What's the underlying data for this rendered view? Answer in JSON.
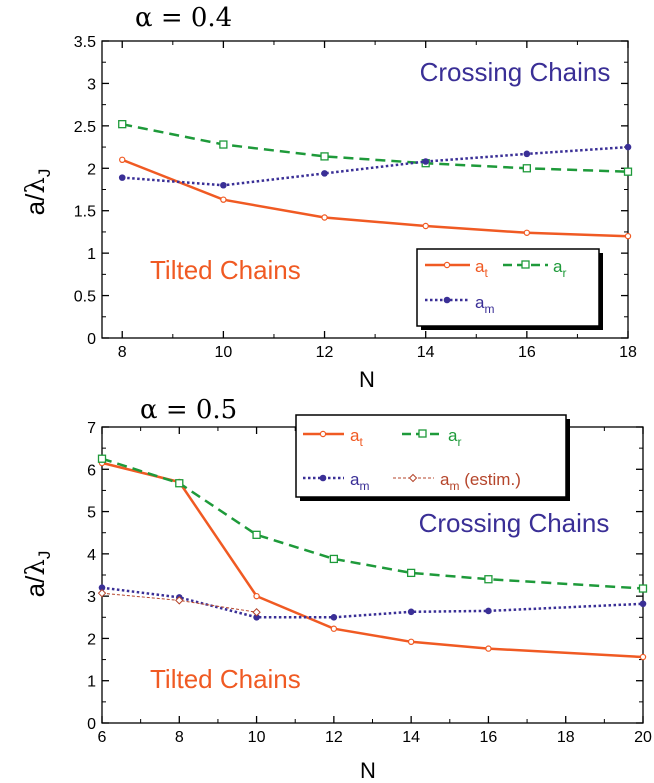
{
  "chart_data": [
    {
      "type": "line",
      "title": "α = 0.4",
      "xlabel": "N",
      "ylabel_parts": [
        "a/",
        "λ",
        "J"
      ],
      "xlim": [
        7.6,
        18.0
      ],
      "ylim": [
        0,
        3.5
      ],
      "xticks": [
        8,
        10,
        12,
        14,
        16,
        18
      ],
      "yticks": [
        0,
        0.5,
        1,
        1.5,
        2,
        2.5,
        3,
        3.5
      ],
      "ytick_labels": [
        "0",
        "0.5",
        "1",
        "1.5",
        "2",
        "2.5",
        "3",
        "3.5"
      ],
      "grid": false,
      "legend_placement": "bottom-right",
      "annotations": [
        {
          "text": "Crossing Chains",
          "color": "#3a2f96"
        },
        {
          "text": "Tilted Chains",
          "color": "#f05a23"
        }
      ],
      "series": [
        {
          "name": "a_t",
          "label_main": "a",
          "label_sub": "t",
          "style": "solid",
          "marker": "open-circle",
          "color": "#f05a23",
          "x": [
            8,
            10,
            12,
            14,
            16,
            18
          ],
          "y": [
            2.1,
            1.63,
            1.42,
            1.32,
            1.24,
            1.2
          ]
        },
        {
          "name": "a_r",
          "label_main": "a",
          "label_sub": "r",
          "style": "dashed",
          "marker": "open-square",
          "color": "#1e9a3a",
          "x": [
            8,
            10,
            12,
            14,
            16,
            18
          ],
          "y": [
            2.52,
            2.28,
            2.14,
            2.06,
            2.0,
            1.96
          ]
        },
        {
          "name": "a_m",
          "label_main": "a",
          "label_sub": "m",
          "style": "dotted",
          "marker": "filled-circle",
          "color": "#3a2f96",
          "x": [
            8,
            10,
            12,
            14,
            16,
            18
          ],
          "y": [
            1.89,
            1.8,
            1.94,
            2.08,
            2.17,
            2.25
          ]
        }
      ]
    },
    {
      "type": "line",
      "title": "α = 0.5",
      "xlabel": "N",
      "ylabel_parts": [
        "a/",
        "λ",
        "J"
      ],
      "xlim": [
        6,
        20
      ],
      "ylim": [
        0,
        7
      ],
      "xticks": [
        6,
        8,
        10,
        12,
        14,
        16,
        18,
        20
      ],
      "yticks": [
        0,
        1,
        2,
        3,
        4,
        5,
        6,
        7
      ],
      "ytick_labels": [
        "0",
        "1",
        "2",
        "3",
        "4",
        "5",
        "6",
        "7"
      ],
      "grid": false,
      "legend_placement": "top-center",
      "annotations": [
        {
          "text": "Crossing Chains",
          "color": "#3a2f96"
        },
        {
          "text": "Tilted Chains",
          "color": "#f05a23"
        }
      ],
      "series": [
        {
          "name": "a_t",
          "label_main": "a",
          "label_sub": "t",
          "style": "solid",
          "marker": "open-circle",
          "color": "#f05a23",
          "x": [
            6,
            8,
            10,
            12,
            14,
            16,
            18,
            20
          ],
          "y": [
            6.15,
            5.7,
            3.0,
            2.23,
            1.92,
            1.76,
            null,
            1.56
          ]
        },
        {
          "name": "a_r",
          "label_main": "a",
          "label_sub": "r",
          "style": "dashed",
          "marker": "open-square",
          "color": "#1e9a3a",
          "x": [
            6,
            8,
            10,
            12,
            14,
            16,
            20
          ],
          "y": [
            6.25,
            5.67,
            4.45,
            3.88,
            3.55,
            3.4,
            3.18
          ]
        },
        {
          "name": "a_m",
          "label_main": "a",
          "label_sub": "m",
          "style": "dotted",
          "marker": "filled-circle",
          "color": "#3a2f96",
          "x": [
            6,
            8,
            10,
            12,
            14,
            16,
            20
          ],
          "y": [
            3.2,
            2.97,
            2.5,
            2.5,
            2.63,
            2.65,
            2.82
          ]
        },
        {
          "name": "a_m (estim.)",
          "label_main": "a",
          "label_sub": "m",
          "label_suffix": " (estim.)",
          "style": "thin-dashed",
          "marker": "open-diamond",
          "color": "#b5452b",
          "x": [
            6,
            8,
            10
          ],
          "y": [
            3.07,
            2.9,
            2.62
          ]
        }
      ]
    }
  ]
}
